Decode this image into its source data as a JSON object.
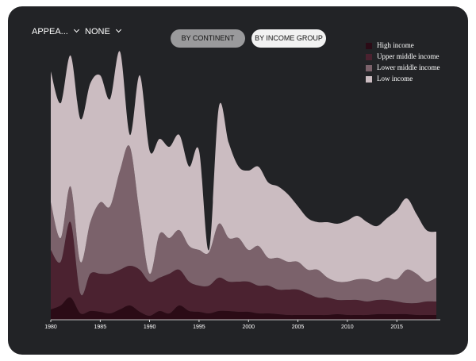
{
  "controls": {
    "dropdowns": [
      "APPEA...",
      "NONE"
    ],
    "buttons": [
      "BY CONTINENT",
      "BY INCOME GROUP"
    ]
  },
  "chart_data": {
    "type": "stacked-area",
    "x": [
      1980,
      1981,
      1982,
      1983,
      1984,
      1985,
      1986,
      1987,
      1988,
      1989,
      1990,
      1991,
      1992,
      1993,
      1994,
      1995,
      1996,
      1997,
      1998,
      1999,
      2000,
      2001,
      2002,
      2003,
      2004,
      2005,
      2006,
      2007,
      2008,
      2009,
      2010,
      2011,
      2012,
      2013,
      2014,
      2015,
      2016,
      2017,
      2018,
      2019
    ],
    "xlim": [
      1980,
      2019
    ],
    "xticks": [
      1980,
      1985,
      1990,
      1995,
      2000,
      2005,
      2010,
      2015
    ],
    "ylim": [
      0,
      340
    ],
    "legend": "top-right",
    "series": [
      {
        "name": "High income",
        "color": "#2b0b16",
        "values": [
          13,
          18,
          28,
          8,
          11,
          10,
          8,
          13,
          18,
          10,
          5,
          11,
          8,
          18,
          11,
          10,
          8,
          11,
          11,
          10,
          10,
          8,
          8,
          7,
          6,
          6,
          6,
          6,
          6,
          7,
          6,
          6,
          6,
          7,
          7,
          7,
          7,
          6,
          6,
          6
        ]
      },
      {
        "name": "Upper middle income",
        "color": "#4b2230",
        "values": [
          75,
          55,
          95,
          25,
          47,
          48,
          50,
          50,
          50,
          53,
          43,
          42,
          50,
          45,
          37,
          33,
          35,
          42,
          37,
          38,
          38,
          35,
          35,
          31,
          32,
          32,
          27,
          22,
          22,
          18,
          19,
          19,
          17,
          18,
          18,
          16,
          14,
          15,
          17,
          17
        ]
      },
      {
        "name": "Lower middle income",
        "color": "#7b626b",
        "values": [
          60,
          30,
          45,
          40,
          65,
          90,
          85,
          125,
          150,
          70,
          10,
          55,
          45,
          50,
          45,
          45,
          42,
          68,
          55,
          55,
          40,
          50,
          35,
          40,
          35,
          35,
          30,
          35,
          25,
          23,
          23,
          26,
          28,
          23,
          28,
          28,
          42,
          37,
          25,
          30
        ]
      },
      {
        "name": "Low income",
        "color": "#cbbcc1",
        "values": [
          165,
          170,
          165,
          180,
          175,
          160,
          135,
          150,
          15,
          175,
          155,
          120,
          115,
          120,
          100,
          125,
          3,
          147,
          120,
          90,
          100,
          100,
          95,
          90,
          85,
          70,
          65,
          60,
          70,
          73,
          77,
          80,
          72,
          70,
          75,
          87,
          90,
          75,
          65,
          58
        ]
      }
    ]
  }
}
